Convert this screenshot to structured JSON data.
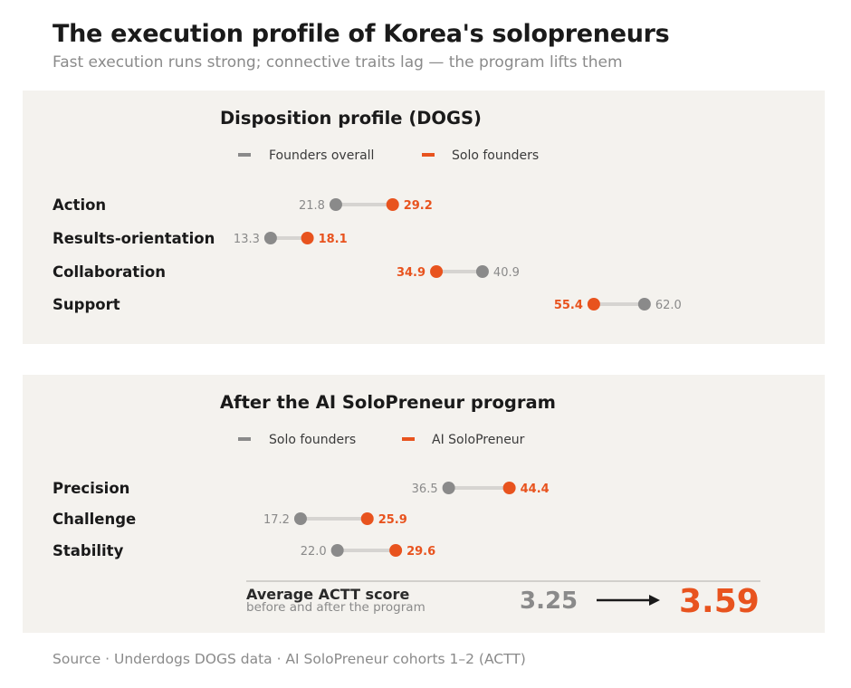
{
  "title": "The execution profile of Korea's solopreneurs",
  "subtitle": "Fast execution runs strong; connective traits lag — the program lifts them",
  "source": "Source · Underdogs DOGS data · AI SoloPreneur cohorts 1–2 (ACTT)",
  "colors": {
    "grey": "#8a8a8a",
    "orange": "#e8531e",
    "connector": "#d6d4d1",
    "panel_bg": "#f4f2ee"
  },
  "chart_data": [
    {
      "type": "dumbbell",
      "title": "Disposition profile (DOGS)",
      "legend": [
        "Founders overall",
        "Solo founders"
      ],
      "categories": [
        "Action",
        "Results-orientation",
        "Collaboration",
        "Support"
      ],
      "series": [
        {
          "name": "Founders overall",
          "color": "#8a8a8a",
          "values": [
            21.8,
            13.3,
            40.9,
            62.0
          ],
          "labels": [
            "21.8",
            "13.3",
            "40.9",
            "62.0"
          ]
        },
        {
          "name": "Solo founders",
          "color": "#e8531e",
          "values": [
            29.2,
            18.1,
            34.9,
            55.4
          ],
          "labels": [
            "29.2",
            "18.1",
            "34.9",
            "55.4"
          ]
        }
      ],
      "xlim": [
        0,
        70
      ],
      "grid": false
    },
    {
      "type": "dumbbell",
      "title": "After the AI SoloPreneur program",
      "legend": [
        "Solo founders",
        "AI SoloPreneur"
      ],
      "categories": [
        "Precision",
        "Challenge",
        "Stability"
      ],
      "series": [
        {
          "name": "Solo founders",
          "color": "#8a8a8a",
          "values": [
            36.5,
            17.2,
            22.0
          ],
          "labels": [
            "36.5",
            "17.2",
            "22.0"
          ]
        },
        {
          "name": "AI SoloPreneur",
          "color": "#e8531e",
          "values": [
            44.4,
            25.9,
            29.6
          ],
          "labels": [
            "44.4",
            "25.9",
            "29.6"
          ]
        }
      ],
      "xlim": [
        0,
        70
      ],
      "grid": false,
      "summary": {
        "title": "Average ACTT score",
        "subtitle": "before and after the program",
        "before": "3.25",
        "after": "3.59"
      }
    }
  ]
}
